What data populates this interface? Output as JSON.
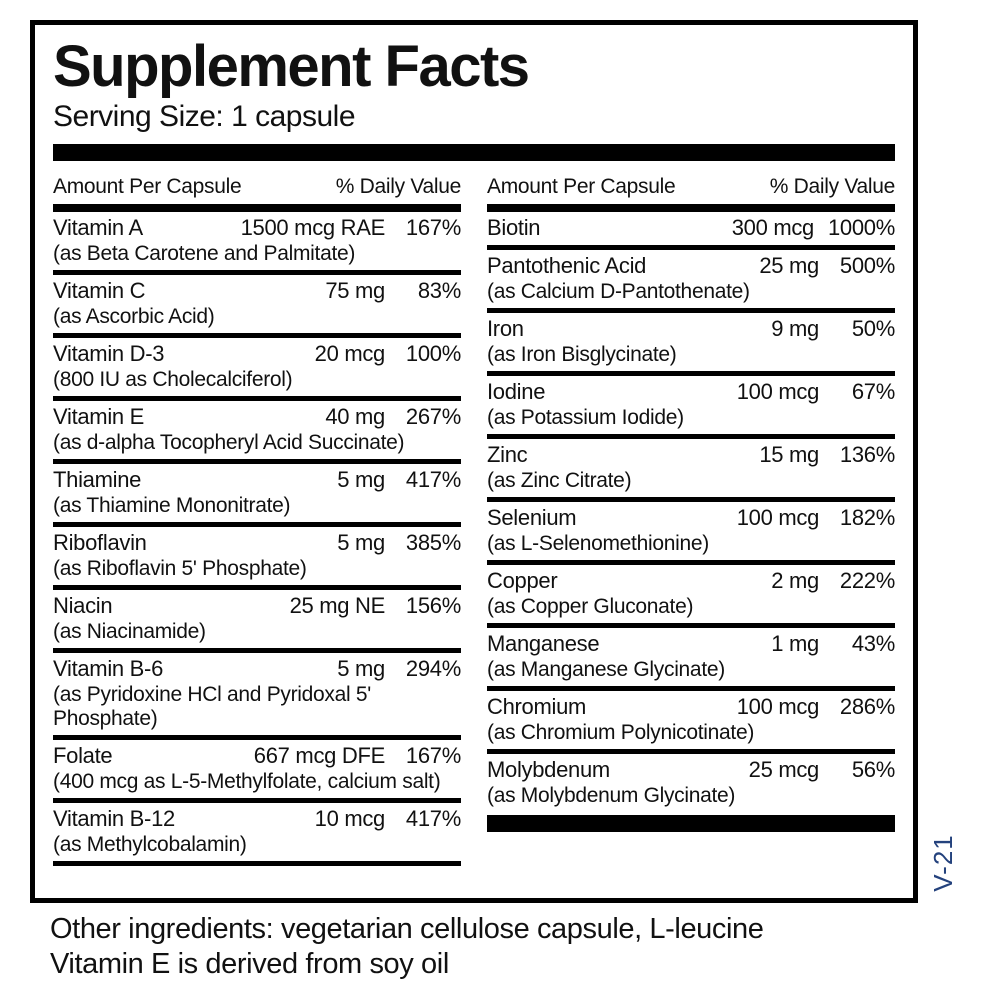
{
  "title": "Supplement Facts",
  "serving_size": "Serving Size: 1 capsule",
  "columns": [
    {
      "header_amount": "Amount Per Capsule",
      "header_dv": "% Daily Value",
      "rows": [
        {
          "name": "Vitamin A",
          "amount": "1500 mcg RAE",
          "dv": "167%",
          "sub": "(as Beta Carotene and Palmitate)"
        },
        {
          "name": "Vitamin C",
          "amount": "75 mg",
          "dv": "83%",
          "sub": "(as Ascorbic Acid)"
        },
        {
          "name": "Vitamin D-3",
          "amount": "20 mcg",
          "dv": "100%",
          "sub": "(800 IU as Cholecalciferol)"
        },
        {
          "name": "Vitamin E",
          "amount": "40 mg",
          "dv": "267%",
          "sub": "(as d-alpha Tocopheryl Acid Succinate)"
        },
        {
          "name": "Thiamine",
          "amount": "5 mg",
          "dv": "417%",
          "sub": "(as Thiamine Mononitrate)"
        },
        {
          "name": "Riboflavin",
          "amount": "5 mg",
          "dv": "385%",
          "sub": "(as Riboflavin 5' Phosphate)"
        },
        {
          "name": "Niacin",
          "amount": "25 mg NE",
          "dv": "156%",
          "sub": "(as Niacinamide)"
        },
        {
          "name": "Vitamin B-6",
          "amount": "5 mg",
          "dv": "294%",
          "sub": "(as Pyridoxine HCl and Pyridoxal 5' Phosphate)"
        },
        {
          "name": "Folate",
          "amount": "667 mcg DFE",
          "dv": "167%",
          "sub": "(400 mcg as L-5-Methylfolate, calcium salt)"
        },
        {
          "name": "Vitamin B-12",
          "amount": "10 mcg",
          "dv": "417%",
          "sub": "(as Methylcobalamin)"
        }
      ]
    },
    {
      "header_amount": "Amount Per Capsule",
      "header_dv": "% Daily Value",
      "rows": [
        {
          "name": "Biotin",
          "amount": "300 mcg",
          "dv": "1000%",
          "sub": ""
        },
        {
          "name": "Pantothenic Acid",
          "amount": "25 mg",
          "dv": "500%",
          "sub": "(as Calcium D-Pantothenate)"
        },
        {
          "name": "Iron",
          "amount": "9 mg",
          "dv": "50%",
          "sub": "(as Iron Bisglycinate)"
        },
        {
          "name": "Iodine",
          "amount": "100 mcg",
          "dv": "67%",
          "sub": "(as Potassium Iodide)"
        },
        {
          "name": "Zinc",
          "amount": "15 mg",
          "dv": "136%",
          "sub": "(as Zinc Citrate)"
        },
        {
          "name": "Selenium",
          "amount": "100 mcg",
          "dv": "182%",
          "sub": "(as L-Selenomethionine)"
        },
        {
          "name": "Copper",
          "amount": "2 mg",
          "dv": "222%",
          "sub": "(as Copper Gluconate)"
        },
        {
          "name": "Manganese",
          "amount": "1 mg",
          "dv": "43%",
          "sub": "(as Manganese Glycinate)"
        },
        {
          "name": "Chromium",
          "amount": "100 mcg",
          "dv": "286%",
          "sub": "(as Chromium Polynicotinate)"
        },
        {
          "name": "Molybdenum",
          "amount": "25 mcg",
          "dv": "56%",
          "sub": "(as Molybdenum Glycinate)"
        }
      ]
    }
  ],
  "footer": {
    "line1": "Other ingredients: vegetarian cellulose capsule, L-leucine",
    "line2": "Vitamin E is derived from soy oil"
  },
  "side_code": "V-21",
  "colors": {
    "text": "#111111",
    "bars": "#000000",
    "background": "#ffffff",
    "side_code": "#24427D"
  }
}
